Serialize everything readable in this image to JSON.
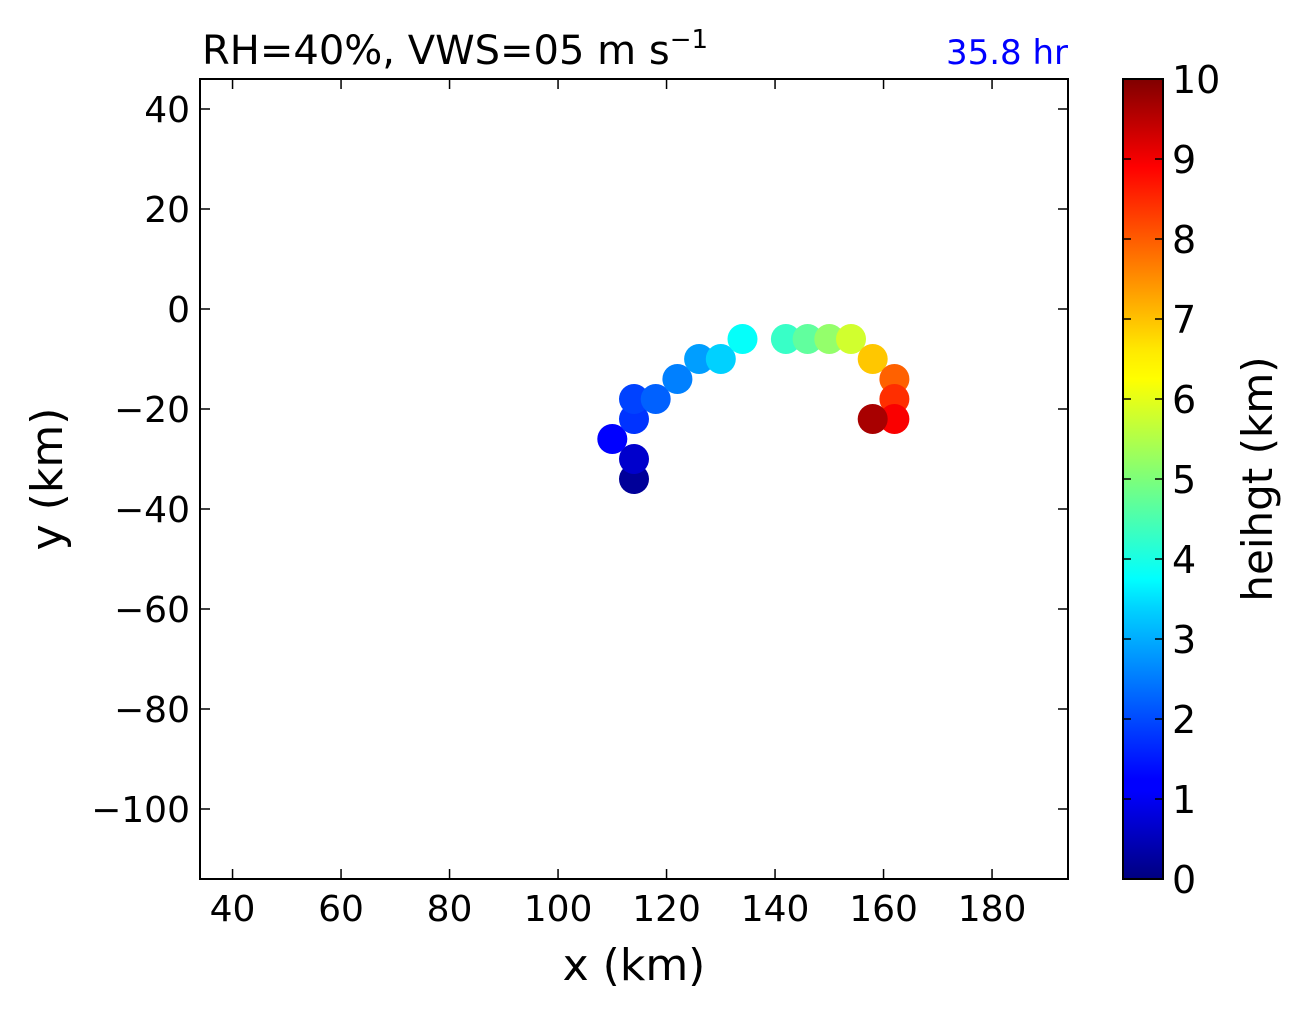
{
  "chart_data": {
    "type": "scatter",
    "title_main": "RH=40%, VWS=05 m s",
    "title_sup": "−1",
    "annotation": "35.8 hr",
    "annotation_color": "#0000ff",
    "xlabel": "x (km)",
    "ylabel": "y (km)",
    "xlim": [
      34,
      194
    ],
    "ylim": [
      -114,
      46
    ],
    "xticks": [
      40,
      60,
      80,
      100,
      120,
      140,
      160,
      180
    ],
    "yticks": [
      40,
      20,
      0,
      -20,
      -40,
      -60,
      -80,
      -100
    ],
    "ytick_labels": [
      "40",
      "20",
      "0",
      "−20",
      "−40",
      "−60",
      "−80",
      "−100"
    ],
    "colorbar": {
      "label": "heihgt (km)",
      "range": [
        0,
        10
      ],
      "ticks": [
        0,
        1,
        2,
        3,
        4,
        5,
        6,
        7,
        8,
        9,
        10
      ],
      "colormap": "jet"
    },
    "points": [
      {
        "x": 114,
        "y": -34,
        "h": 0.25
      },
      {
        "x": 114,
        "y": -30,
        "h": 0.75
      },
      {
        "x": 110,
        "y": -26,
        "h": 1.25
      },
      {
        "x": 114,
        "y": -22,
        "h": 1.75
      },
      {
        "x": 114,
        "y": -18,
        "h": 1.9
      },
      {
        "x": 118,
        "y": -18,
        "h": 2.2
      },
      {
        "x": 122,
        "y": -14,
        "h": 2.5
      },
      {
        "x": 126,
        "y": -10,
        "h": 2.8
      },
      {
        "x": 130,
        "y": -10,
        "h": 3.3
      },
      {
        "x": 134,
        "y": -6,
        "h": 3.8
      },
      {
        "x": 142,
        "y": -6,
        "h": 4.3
      },
      {
        "x": 146,
        "y": -6,
        "h": 4.7
      },
      {
        "x": 150,
        "y": -6,
        "h": 5.2
      },
      {
        "x": 154,
        "y": -6,
        "h": 5.8
      },
      {
        "x": 158,
        "y": -10,
        "h": 6.8
      },
      {
        "x": 162,
        "y": -14,
        "h": 7.8
      },
      {
        "x": 162,
        "y": -18,
        "h": 8.3
      },
      {
        "x": 162,
        "y": -22,
        "h": 8.8
      },
      {
        "x": 158,
        "y": -22,
        "h": 9.6
      }
    ]
  }
}
